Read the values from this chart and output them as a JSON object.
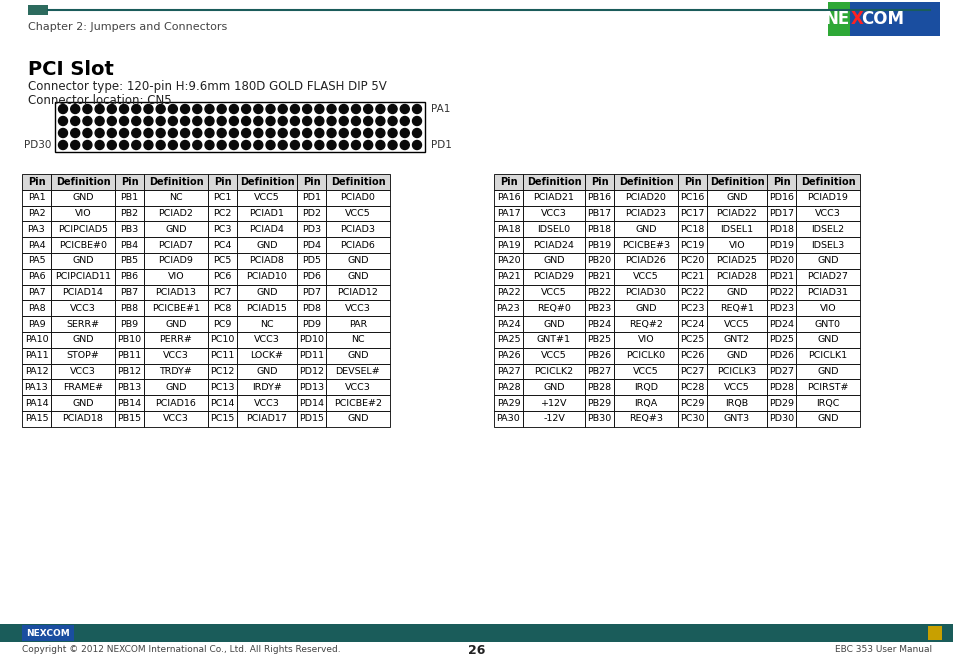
{
  "title": "PCI Slot",
  "connector_type": "Connector type: 120-pin H:9.6mm 180D GOLD FLASH DIP 5V",
  "connector_location": "Connector location: CN5",
  "header_text": "Chapter 2: Jumpers and Connectors",
  "page_number": "26",
  "footer_left": "Copyright © 2012 NEXCOM International Co., Ltd. All Rights Reserved.",
  "footer_right": "EBC 353 User Manual",
  "table1": {
    "headers": [
      "Pin",
      "Definition",
      "Pin",
      "Definition",
      "Pin",
      "Definition",
      "Pin",
      "Definition"
    ],
    "rows": [
      [
        "PA1",
        "GND",
        "PB1",
        "NC",
        "PC1",
        "VCC5",
        "PD1",
        "PCIAD0"
      ],
      [
        "PA2",
        "VIO",
        "PB2",
        "PCIAD2",
        "PC2",
        "PCIAD1",
        "PD2",
        "VCC5"
      ],
      [
        "PA3",
        "PCIPCIAD5",
        "PB3",
        "GND",
        "PC3",
        "PCIAD4",
        "PD3",
        "PCIAD3"
      ],
      [
        "PA4",
        "PCICBE#0",
        "PB4",
        "PCIAD7",
        "PC4",
        "GND",
        "PD4",
        "PCIAD6"
      ],
      [
        "PA5",
        "GND",
        "PB5",
        "PCIAD9",
        "PC5",
        "PCIAD8",
        "PD5",
        "GND"
      ],
      [
        "PA6",
        "PCIPCIAD11",
        "PB6",
        "VIO",
        "PC6",
        "PCIAD10",
        "PD6",
        "GND"
      ],
      [
        "PA7",
        "PCIAD14",
        "PB7",
        "PCIAD13",
        "PC7",
        "GND",
        "PD7",
        "PCIAD12"
      ],
      [
        "PA8",
        "VCC3",
        "PB8",
        "PCICBE#1",
        "PC8",
        "PCIAD15",
        "PD8",
        "VCC3"
      ],
      [
        "PA9",
        "SERR#",
        "PB9",
        "GND",
        "PC9",
        "NC",
        "PD9",
        "PAR"
      ],
      [
        "PA10",
        "GND",
        "PB10",
        "PERR#",
        "PC10",
        "VCC3",
        "PD10",
        "NC"
      ],
      [
        "PA11",
        "STOP#",
        "PB11",
        "VCC3",
        "PC11",
        "LOCK#",
        "PD11",
        "GND"
      ],
      [
        "PA12",
        "VCC3",
        "PB12",
        "TRDY#",
        "PC12",
        "GND",
        "PD12",
        "DEVSEL#"
      ],
      [
        "PA13",
        "FRAME#",
        "PB13",
        "GND",
        "PC13",
        "IRDY#",
        "PD13",
        "VCC3"
      ],
      [
        "PA14",
        "GND",
        "PB14",
        "PCIAD16",
        "PC14",
        "VCC3",
        "PD14",
        "PCICBE#2"
      ],
      [
        "PA15",
        "PCIAD18",
        "PB15",
        "VCC3",
        "PC15",
        "PCIAD17",
        "PD15",
        "GND"
      ]
    ]
  },
  "table2": {
    "headers": [
      "Pin",
      "Definition",
      "Pin",
      "Definition",
      "Pin",
      "Definition",
      "Pin",
      "Definition"
    ],
    "rows": [
      [
        "PA16",
        "PCIAD21",
        "PB16",
        "PCIAD20",
        "PC16",
        "GND",
        "PD16",
        "PCIAD19"
      ],
      [
        "PA17",
        "VCC3",
        "PB17",
        "PCIAD23",
        "PC17",
        "PCIAD22",
        "PD17",
        "VCC3"
      ],
      [
        "PA18",
        "IDSEL0",
        "PB18",
        "GND",
        "PC18",
        "IDSEL1",
        "PD18",
        "IDSEL2"
      ],
      [
        "PA19",
        "PCIAD24",
        "PB19",
        "PCICBE#3",
        "PC19",
        "VIO",
        "PD19",
        "IDSEL3"
      ],
      [
        "PA20",
        "GND",
        "PB20",
        "PCIAD26",
        "PC20",
        "PCIAD25",
        "PD20",
        "GND"
      ],
      [
        "PA21",
        "PCIAD29",
        "PB21",
        "VCC5",
        "PC21",
        "PCIAD28",
        "PD21",
        "PCIAD27"
      ],
      [
        "PA22",
        "VCC5",
        "PB22",
        "PCIAD30",
        "PC22",
        "GND",
        "PD22",
        "PCIAD31"
      ],
      [
        "PA23",
        "REQ#0",
        "PB23",
        "GND",
        "PC23",
        "REQ#1",
        "PD23",
        "VIO"
      ],
      [
        "PA24",
        "GND",
        "PB24",
        "REQ#2",
        "PC24",
        "VCC5",
        "PD24",
        "GNT0"
      ],
      [
        "PA25",
        "GNT#1",
        "PB25",
        "VIO",
        "PC25",
        "GNT2",
        "PD25",
        "GND"
      ],
      [
        "PA26",
        "VCC5",
        "PB26",
        "PCICLK0",
        "PC26",
        "GND",
        "PD26",
        "PCICLK1"
      ],
      [
        "PA27",
        "PCICLK2",
        "PB27",
        "VCC5",
        "PC27",
        "PCICLK3",
        "PD27",
        "GND"
      ],
      [
        "PA28",
        "GND",
        "PB28",
        "IRQD",
        "PC28",
        "VCC5",
        "PD28",
        "PCIRST#"
      ],
      [
        "PA29",
        "+12V",
        "PB29",
        "IRQA",
        "PC29",
        "IRQB",
        "PD29",
        "IRQC"
      ],
      [
        "PA30",
        "-12V",
        "PB30",
        "REQ#3",
        "PC30",
        "GNT3",
        "PD30",
        "GND"
      ]
    ]
  },
  "bg_color": "#ffffff",
  "header_line_color": "#1a5c5a",
  "header_rect_color": "#2d6b5e",
  "footer_bar_color": "#1a5c5a",
  "nexcom_blue": "#1a4ea0",
  "nexcom_green_logo": "#2ea836"
}
